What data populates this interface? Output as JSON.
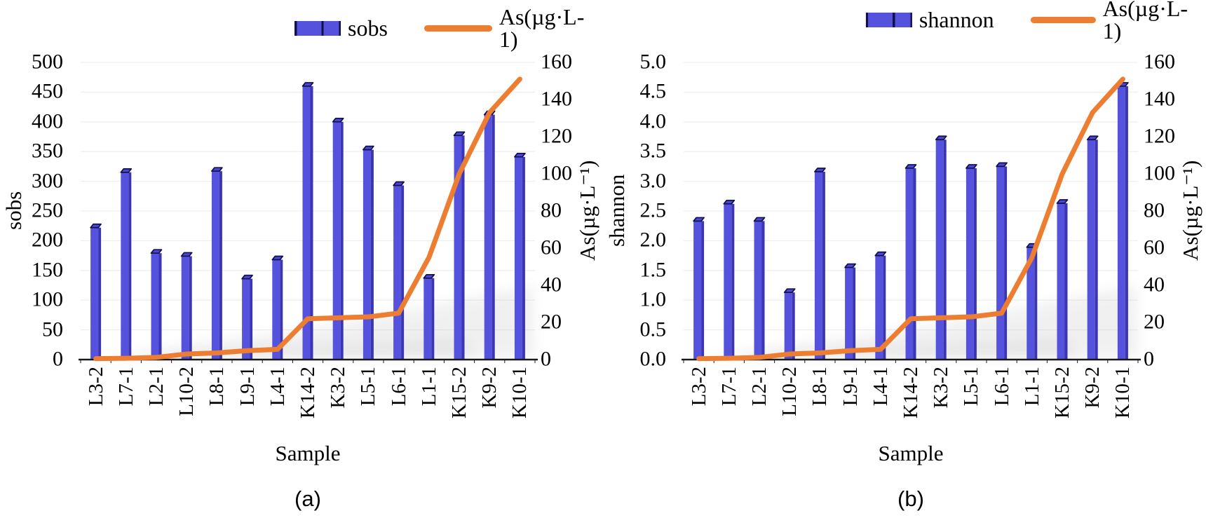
{
  "colors": {
    "bar_face": "#5552DE",
    "bar_side": "#3A36B0",
    "bar_cap": "#4B47D4",
    "bar_cap_stroke": "#12104A",
    "line": "#ED7D31",
    "axis": "#1A1A1A",
    "gridline": "#EFEFEF"
  },
  "chart_data": [
    {
      "type": "bar+line",
      "caption": "(a)",
      "layout": {
        "legend_position": "top",
        "gridlines": "horizontal"
      },
      "legend": {
        "bar_label": "sobs",
        "line_label": "As(µg·L-1)"
      },
      "x": {
        "title": "Sample",
        "categories": [
          "L3-2",
          "L7-1",
          "L2-1",
          "L10-2",
          "L8-1",
          "L9-1",
          "L4-1",
          "K14-2",
          "K3-2",
          "L5-1",
          "L6-1",
          "L1-1",
          "K15-2",
          "K9-2",
          "K10-1"
        ]
      },
      "y_left": {
        "title": "sobs",
        "min": 0,
        "max": 500,
        "ticks": [
          "500",
          "450",
          "400",
          "350",
          "300",
          "250",
          "200",
          "150",
          "100",
          "50",
          "0"
        ]
      },
      "y_right": {
        "title": "As(µg·L⁻¹)",
        "min": 0,
        "max": 160,
        "ticks": [
          "160",
          "140",
          "120",
          "100",
          "80",
          "60",
          "40",
          "20",
          "0"
        ]
      },
      "series": [
        {
          "name": "sobs",
          "type": "bar",
          "axis": "left",
          "values": [
            222,
            315,
            179,
            174,
            317,
            136,
            168,
            460,
            400,
            353,
            293,
            137,
            377,
            412,
            341
          ]
        },
        {
          "name": "As(µg·L-1)",
          "type": "line",
          "axis": "right",
          "values": [
            0.5,
            0.7,
            1.2,
            3,
            3.6,
            4.8,
            5.5,
            22,
            22.5,
            23,
            25,
            55,
            100,
            133,
            151
          ]
        }
      ]
    },
    {
      "type": "bar+line",
      "caption": "(b)",
      "layout": {
        "legend_position": "top",
        "gridlines": "horizontal"
      },
      "legend": {
        "bar_label": "shannon",
        "line_label": "As(µg·L-1)"
      },
      "x": {
        "title": "Sample",
        "categories": [
          "L3-2",
          "L7-1",
          "L2-1",
          "L10-2",
          "L8-1",
          "L9-1",
          "L4-1",
          "K14-2",
          "K3-2",
          "L5-1",
          "L6-1",
          "L1-1",
          "K15-2",
          "K9-2",
          "K10-1"
        ]
      },
      "y_left": {
        "title": "shannon",
        "min": 0,
        "max": 5,
        "ticks": [
          "5.0",
          "4.5",
          "4.0",
          "3.5",
          "3.0",
          "2.5",
          "2.0",
          "1.5",
          "1.0",
          "0.5",
          "0.0"
        ]
      },
      "y_right": {
        "title": "As(µg·L⁻¹)",
        "min": 0,
        "max": 160,
        "ticks": [
          "160",
          "140",
          "120",
          "100",
          "80",
          "60",
          "40",
          "20",
          "0"
        ]
      },
      "series": [
        {
          "name": "shannon",
          "type": "bar",
          "axis": "left",
          "values": [
            2.33,
            2.62,
            2.33,
            1.13,
            3.16,
            1.55,
            1.75,
            3.22,
            3.7,
            3.22,
            3.25,
            1.89,
            2.63,
            3.7,
            4.6
          ]
        },
        {
          "name": "As(µg·L-1)",
          "type": "line",
          "axis": "right",
          "values": [
            0.5,
            0.7,
            1.2,
            3,
            3.6,
            4.8,
            5.5,
            22,
            22.5,
            23,
            25,
            55,
            100,
            133,
            151
          ]
        }
      ]
    }
  ]
}
